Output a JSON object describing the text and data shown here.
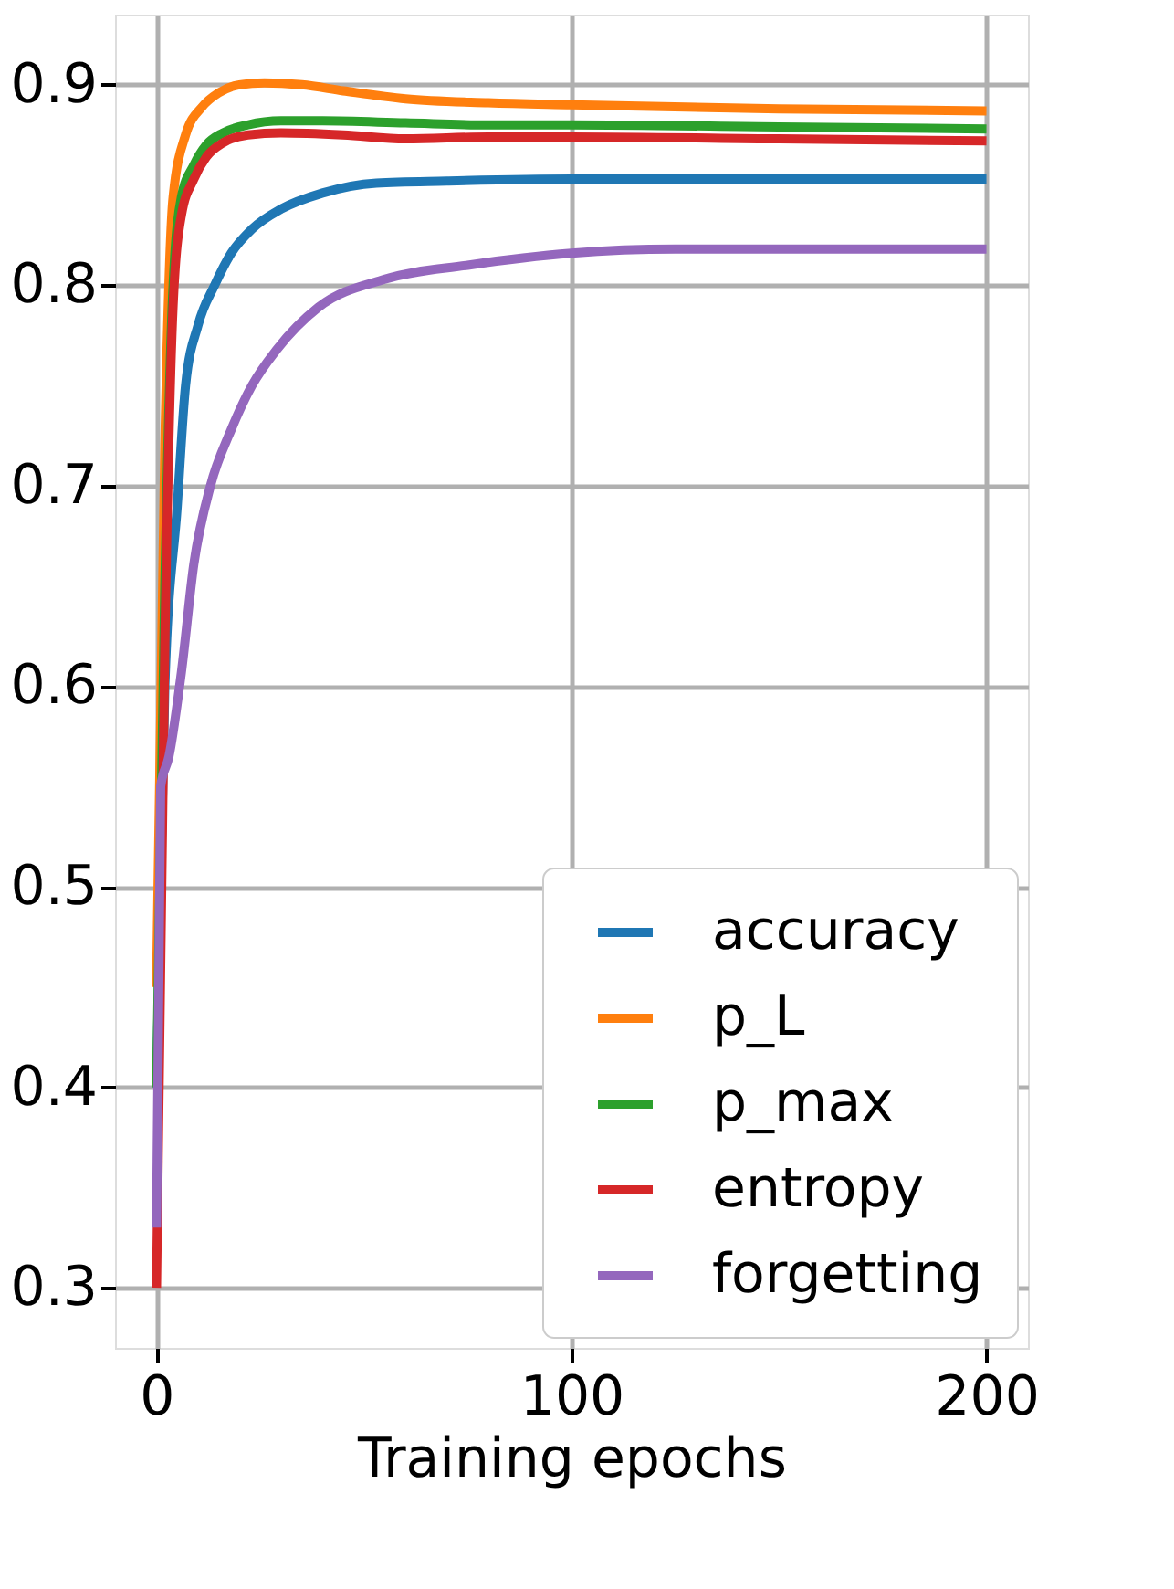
{
  "chart_data": {
    "type": "line",
    "xlabel": "Training epochs",
    "xlim": [
      -10,
      210
    ],
    "ylim": [
      0.27,
      0.935
    ],
    "xticks": [
      0,
      100,
      200
    ],
    "yticks": [
      0.3,
      0.4,
      0.5,
      0.6,
      0.7,
      0.8,
      0.9
    ],
    "grid": true,
    "legend": "bottom right",
    "line_style": "solid",
    "marker": "none",
    "series": [
      {
        "name": "accuracy",
        "color": "#1f77b4",
        "x": [
          0,
          2,
          5,
          7,
          10,
          14,
          18,
          23,
          30,
          40,
          53,
          70,
          100,
          150,
          200
        ],
        "values": [
          0.4,
          0.6,
          0.69,
          0.75,
          0.78,
          0.8,
          0.816,
          0.828,
          0.838,
          0.846,
          0.851,
          0.852,
          0.853,
          0.853,
          0.853
        ]
      },
      {
        "name": "p_L",
        "color": "#ff7f0e",
        "x": [
          0,
          2,
          4,
          7,
          11,
          15,
          20,
          26,
          35,
          45,
          60,
          80,
          100,
          150,
          200
        ],
        "values": [
          0.45,
          0.72,
          0.844,
          0.875,
          0.889,
          0.896,
          0.9,
          0.901,
          0.9,
          0.897,
          0.893,
          0.891,
          0.89,
          0.888,
          0.887
        ]
      },
      {
        "name": "p_max",
        "color": "#2ca02c",
        "x": [
          0,
          2,
          4,
          6,
          9,
          12,
          16,
          22,
          30,
          40,
          60,
          80,
          100,
          150,
          200
        ],
        "values": [
          0.4,
          0.65,
          0.8,
          0.844,
          0.86,
          0.87,
          0.876,
          0.88,
          0.882,
          0.882,
          0.881,
          0.88,
          0.88,
          0.879,
          0.878
        ]
      },
      {
        "name": "entropy",
        "color": "#d62728",
        "x": [
          0,
          2,
          4,
          6,
          9,
          12,
          16,
          22,
          30,
          45,
          60,
          80,
          100,
          150,
          200
        ],
        "values": [
          0.3,
          0.62,
          0.79,
          0.835,
          0.853,
          0.864,
          0.871,
          0.875,
          0.876,
          0.875,
          0.873,
          0.874,
          0.874,
          0.873,
          0.872
        ]
      },
      {
        "name": "forgetting",
        "color": "#9467bd",
        "x": [
          0,
          1,
          3,
          6,
          9,
          13,
          18,
          23,
          29,
          39,
          55,
          75,
          100,
          125,
          150,
          200
        ],
        "values": [
          0.33,
          0.55,
          0.565,
          0.607,
          0.661,
          0.7,
          0.728,
          0.75,
          0.768,
          0.789,
          0.803,
          0.81,
          0.816,
          0.818,
          0.818,
          0.818
        ]
      }
    ]
  }
}
